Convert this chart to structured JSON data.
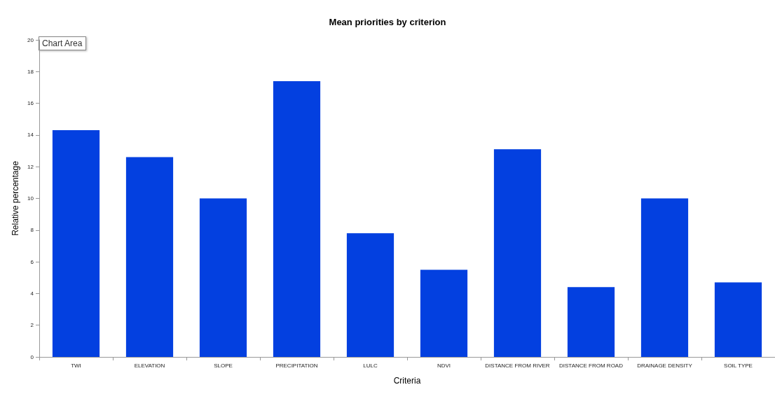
{
  "chart_data": {
    "type": "bar",
    "title": "Mean priorities by criterion",
    "xlabel": "Criteria",
    "ylabel": "Relative percentage",
    "categories": [
      "TWI",
      "ELEVATION",
      "SLOPE",
      "PRECIPITATION",
      "LULC",
      "NDVI",
      "DISTANCE FROM RIVER",
      "DISTANCE FROM ROAD",
      "DRAINAGE DENSITY",
      "SOIL TYPE"
    ],
    "values": [
      14.3,
      12.6,
      10.0,
      17.4,
      7.8,
      5.5,
      13.1,
      4.4,
      10.0,
      4.7
    ],
    "color": "#0340e0",
    "ylim": [
      0,
      20
    ],
    "yticks": [
      0,
      2,
      4,
      6,
      8,
      10,
      12,
      14,
      16,
      18,
      20
    ],
    "grid": false,
    "annotations": [
      "Chart Area"
    ]
  }
}
